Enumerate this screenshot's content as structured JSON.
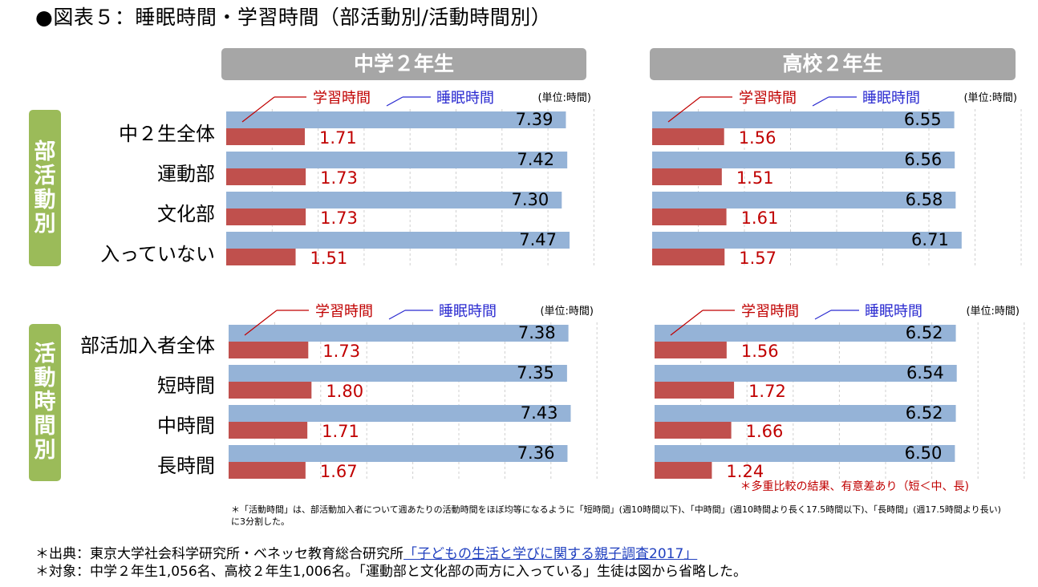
{
  "title": "●図表５：睡眠時間・学習時間（部活動別/活動時間別）",
  "columns": [
    "中学２年生",
    "高校２年生"
  ],
  "side_labels": [
    "部活動別",
    "活動時間別"
  ],
  "colors": {
    "sleep": "#95b3d7",
    "study": "#c0504d",
    "study_text": "#c00000",
    "sleep_legend": "#2a2ad0",
    "header_bg": "#a6a6a6",
    "side_bg": "#9bbb59"
  },
  "chart_data": [
    {
      "type": "bar",
      "orientation": "horizontal",
      "title": "中学２年生 部活動別",
      "categories": [
        "中２生全体",
        "運動部",
        "文化部",
        "入っていない"
      ],
      "series": [
        {
          "name": "睡眠時間",
          "values": [
            7.39,
            7.42,
            7.3,
            7.47
          ]
        },
        {
          "name": "学習時間",
          "values": [
            1.71,
            1.73,
            1.73,
            1.51
          ]
        }
      ],
      "unit": "(単位:時間)",
      "xlim": [
        0,
        9
      ]
    },
    {
      "type": "bar",
      "orientation": "horizontal",
      "title": "高校２年生 部活動別",
      "categories": [
        "中２生全体",
        "運動部",
        "文化部",
        "入っていない"
      ],
      "series": [
        {
          "name": "睡眠時間",
          "values": [
            6.55,
            6.56,
            6.58,
            6.71
          ]
        },
        {
          "name": "学習時間",
          "values": [
            1.56,
            1.51,
            1.61,
            1.57
          ]
        }
      ],
      "unit": "(単位:時間)",
      "xlim": [
        0,
        9
      ]
    },
    {
      "type": "bar",
      "orientation": "horizontal",
      "title": "中学２年生 活動時間別",
      "categories": [
        "部活加入者全体",
        "短時間",
        "中時間",
        "長時間"
      ],
      "series": [
        {
          "name": "睡眠時間",
          "values": [
            7.38,
            7.35,
            7.43,
            7.36
          ]
        },
        {
          "name": "学習時間",
          "values": [
            1.73,
            1.8,
            1.71,
            1.67
          ]
        }
      ],
      "unit": "(単位:時間)",
      "xlim": [
        0,
        9
      ]
    },
    {
      "type": "bar",
      "orientation": "horizontal",
      "title": "高校２年生 活動時間別",
      "categories": [
        "部活加入者全体",
        "短時間",
        "中時間",
        "長時間"
      ],
      "series": [
        {
          "name": "睡眠時間",
          "values": [
            6.52,
            6.54,
            6.52,
            6.5
          ]
        },
        {
          "name": "学習時間",
          "values": [
            1.56,
            1.72,
            1.66,
            1.24
          ]
        }
      ],
      "unit": "(単位:時間)",
      "xlim": [
        0,
        9
      ],
      "annotation": "＊多重比較の結果、有意差あり（短＜中、長)"
    }
  ],
  "footnote_small": "＊「活動時間」は、部活動加入者について週あたりの活動時間をほぼ均等になるように「短時間」(週10時間以下)、「中時間」(週10時間より長く17.5時間以下)、「長時間」(週17.5時間より長い)に3分割した。",
  "footer": {
    "source_prefix": "＊出典：東京大学社会科学研究所・ベネッセ教育総合研究所",
    "source_link": "「子どもの生活と学びに関する親子調査2017」",
    "target": "＊対象：中学２年生1,056名、高校２年生1,006名。「運動部と文化部の両方に入っている」生徒は図から省略した。"
  }
}
